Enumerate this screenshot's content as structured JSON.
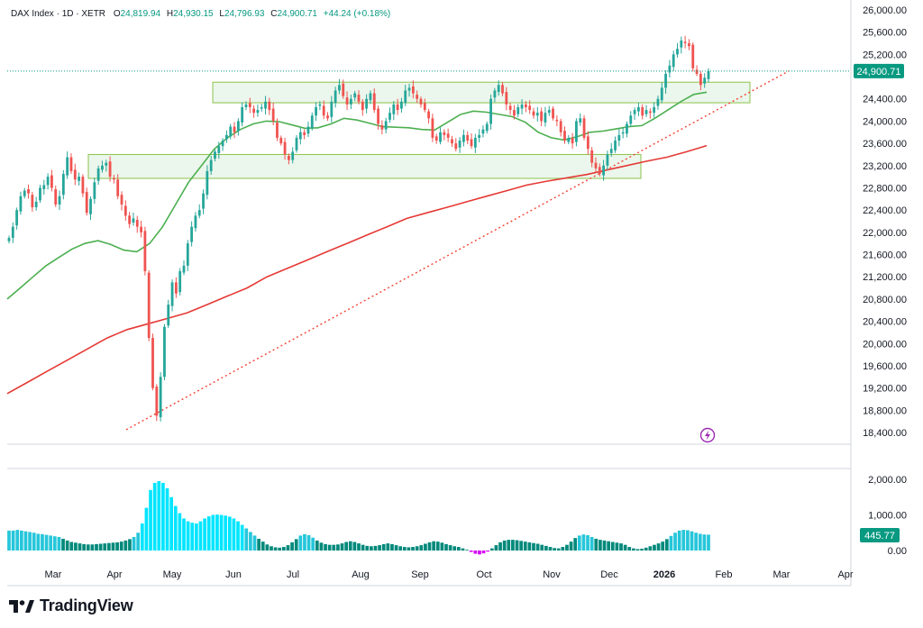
{
  "header": {
    "symbol": "DAX Index · 1D · XETR",
    "open_label": "O",
    "open": "24,819.94",
    "high_label": "H",
    "high": "24,930.15",
    "low_label": "L",
    "low": "24,796.93",
    "close_label": "C",
    "close": "24,900.71",
    "change": "+44.24 (+0.18%)"
  },
  "price_axis_labels": [
    "26,000.00",
    "25,600.00",
    "25,200.00",
    "24,400.00",
    "24,000.00",
    "23,600.00",
    "23,200.00",
    "22,800.00",
    "22,400.00",
    "22,000.00",
    "21,600.00",
    "21,200.00",
    "20,800.00",
    "20,400.00",
    "20,000.00",
    "19,600.00",
    "19,200.00",
    "18,800.00",
    "18,400.00"
  ],
  "current_price_label": "24,900.71",
  "volume_axis_labels": [
    "2,000.00",
    "1,000.00",
    "0.00"
  ],
  "current_volume_label": "445.77",
  "time_labels": [
    "Mar",
    "Apr",
    "May",
    "Jun",
    "Jul",
    "Aug",
    "Sep",
    "Oct",
    "Nov",
    "Dec",
    "2026",
    "Feb",
    "Mar",
    "Apr"
  ],
  "brand": "TradingView",
  "colors": {
    "up": "#26a69a",
    "down": "#ef5350",
    "ma_short": "#4caf50",
    "ma_long": "#e53935",
    "trendline": "#f44336",
    "zone_fill": "#e8f5e9",
    "zone_border": "#8bc34a",
    "volume_high": "#00e5ff",
    "volume_low": "#00897b",
    "volume_negative": "#d500f9",
    "last_price_bg": "#089981",
    "lightning": "#9c27b0"
  },
  "chart_data": {
    "type": "candlestick",
    "symbol": "DAX Index",
    "interval": "1D",
    "exchange": "XETR",
    "y_scale": "linear",
    "ylim": [
      18400,
      26000
    ],
    "volume_ylim": [
      0,
      2000
    ],
    "last": {
      "open": 24819.94,
      "high": 24930.15,
      "low": 24796.93,
      "close": 24900.71,
      "change": 44.24,
      "change_pct": 0.18
    },
    "candle_closes_approx": [
      21900,
      22100,
      22400,
      22650,
      22750,
      22700,
      22450,
      22550,
      22800,
      22850,
      23000,
      22800,
      22500,
      22650,
      23050,
      23350,
      23100,
      22950,
      23000,
      22700,
      22350,
      22600,
      22900,
      23150,
      23200,
      23250,
      23000,
      22950,
      22650,
      22500,
      22300,
      22150,
      22250,
      22100,
      22000,
      21300,
      20100,
      19200,
      18700,
      19400,
      20300,
      20700,
      21100,
      20900,
      21300,
      21400,
      21800,
      22100,
      22300,
      22400,
      22700,
      23100,
      23300,
      23450,
      23550,
      23650,
      23750,
      23900,
      23800,
      24000,
      24250,
      24300,
      24250,
      24150,
      24200,
      24250,
      24350,
      24200,
      24000,
      23700,
      23600,
      23400,
      23300,
      23450,
      23700,
      23800,
      23750,
      23900,
      24100,
      24250,
      24300,
      24100,
      24050,
      24350,
      24550,
      24650,
      24450,
      24300,
      24400,
      24500,
      24350,
      24200,
      24400,
      24500,
      24200,
      23950,
      23850,
      24000,
      24150,
      24300,
      24200,
      24350,
      24550,
      24600,
      24500,
      24400,
      24300,
      24200,
      24050,
      23700,
      23650,
      23800,
      23750,
      23700,
      23600,
      23500,
      23650,
      23750,
      23650,
      23550,
      23700,
      23750,
      23850,
      23950,
      24400,
      24550,
      24650,
      24500,
      24300,
      24200,
      24100,
      24250,
      24300,
      24250,
      24200,
      24100,
      24150,
      24000,
      24150,
      24200,
      24050,
      24000,
      23800,
      23650,
      23700,
      23600,
      24000,
      24050,
      23700,
      23500,
      23250,
      23150,
      23050,
      23200,
      23400,
      23500,
      23650,
      23750,
      23800,
      23950,
      24100,
      24200,
      24250,
      24100,
      24200,
      24150,
      24250,
      24400,
      24600,
      24850,
      25000,
      25200,
      25300,
      25450,
      25400,
      25350,
      24950,
      24850,
      24650,
      24780,
      24900
    ],
    "ma_short_approx": [
      20800,
      21000,
      21200,
      21400,
      21550,
      21700,
      21800,
      21850,
      21780,
      21680,
      21650,
      21800,
      22100,
      22500,
      22900,
      23200,
      23500,
      23700,
      23850,
      23950,
      24000,
      23990,
      23930,
      23870,
      23880,
      23950,
      24050,
      24020,
      23960,
      23900,
      23890,
      23880,
      23850,
      23840,
      23980,
      24120,
      24180,
      24160,
      24120,
      24080,
      23980,
      23800,
      23700,
      23660,
      23720,
      23800,
      23820,
      23860,
      23900,
      23920,
      24050,
      24200,
      24350,
      24480,
      24520
    ],
    "ma_long_approx": [
      19100,
      19300,
      19500,
      19700,
      19900,
      20100,
      20250,
      20350,
      20450,
      20550,
      20700,
      20850,
      21000,
      21200,
      21350,
      21500,
      21650,
      21800,
      21950,
      22100,
      22250,
      22350,
      22450,
      22550,
      22650,
      22750,
      22850,
      22920,
      22980,
      23040,
      23120,
      23200,
      23280,
      23350,
      23450,
      23560
    ],
    "zones": [
      {
        "from": "May",
        "to": "Feb",
        "price_low": 24330,
        "price_high": 24700
      },
      {
        "from": "Feb",
        "to": "Dec",
        "price_low": 22970,
        "price_high": 23400
      }
    ],
    "trendline": {
      "start_price": 18450,
      "start_time": "Apr",
      "end_price": 24900,
      "end_time": "Feb",
      "style": "dotted"
    },
    "volume_approx": [
      560,
      560,
      580,
      560,
      540,
      520,
      500,
      470,
      460,
      440,
      420,
      400,
      380,
      330,
      280,
      240,
      220,
      200,
      180,
      170,
      170,
      180,
      190,
      200,
      210,
      220,
      230,
      250,
      280,
      320,
      380,
      500,
      760,
      1200,
      1700,
      1900,
      1950,
      1900,
      1750,
      1500,
      1250,
      1050,
      900,
      820,
      780,
      760,
      820,
      900,
      960,
      1000,
      1010,
      1000,
      980,
      950,
      900,
      820,
      720,
      620,
      520,
      420,
      330,
      250,
      170,
      120,
      90,
      80,
      100,
      150,
      230,
      320,
      420,
      460,
      430,
      360,
      280,
      220,
      180,
      160,
      160,
      170,
      200,
      240,
      260,
      240,
      200,
      160,
      130,
      120,
      130,
      150,
      180,
      200,
      180,
      150,
      120,
      100,
      90,
      100,
      120,
      150,
      190,
      230,
      260,
      250,
      220,
      180,
      150,
      120,
      100,
      60,
      20,
      -40,
      -90,
      -110,
      -80,
      -30,
      60,
      150,
      230,
      280,
      300,
      300,
      290,
      270,
      250,
      230,
      210,
      190,
      160,
      130,
      100,
      70,
      60,
      100,
      160,
      250,
      350,
      420,
      450,
      430,
      380,
      330,
      300,
      280,
      260,
      240,
      220,
      200,
      160,
      100,
      60,
      40,
      50,
      80,
      120,
      160,
      200,
      250,
      320,
      410,
      500,
      560,
      580,
      570,
      540,
      500,
      470,
      450,
      445
    ],
    "last_volume": 445.77
  }
}
